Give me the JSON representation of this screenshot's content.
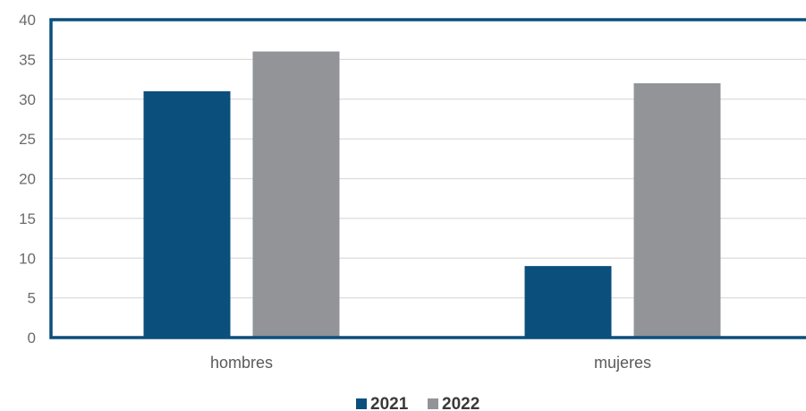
{
  "chart_data": {
    "type": "bar",
    "title": "",
    "xlabel": "",
    "ylabel": "",
    "categories": [
      "hombres",
      "mujeres"
    ],
    "series": [
      {
        "name": "2021",
        "values": [
          31,
          9
        ],
        "color": "#0b4f7d"
      },
      {
        "name": "2022",
        "values": [
          36,
          32
        ],
        "color": "#929497"
      }
    ],
    "ylim": [
      0,
      40
    ],
    "yticks": [
      0,
      5,
      10,
      15,
      20,
      25,
      30,
      35,
      40
    ],
    "grid": true,
    "legend_position": "bottom-center",
    "frame_color": "#0b4f7d",
    "grid_color": "#dcdcdc",
    "tick_color": "#6b6b6b"
  }
}
